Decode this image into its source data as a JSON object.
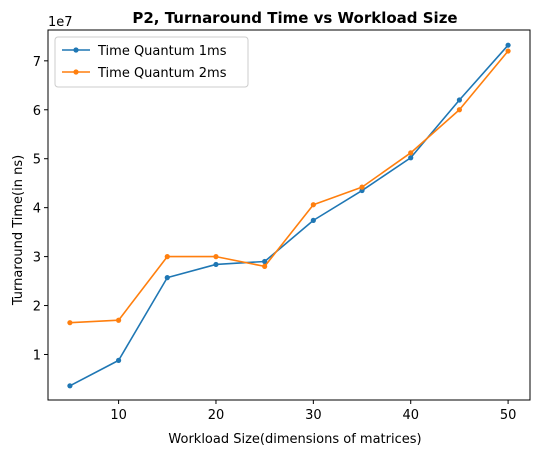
{
  "chart_data": {
    "type": "line",
    "title": "P2, Turnaround Time vs Workload Size",
    "xlabel": "Workload Size(dimensions of matrices)",
    "ylabel": "Turnaround Time(in ns)",
    "y_scale_label": "1e7",
    "x": [
      5,
      10,
      15,
      20,
      25,
      30,
      35,
      40,
      45,
      50
    ],
    "xlim": [
      2.75,
      52.25
    ],
    "ylim": [
      0.07,
      7.63
    ],
    "x_ticks": [
      10,
      20,
      30,
      40,
      50
    ],
    "y_ticks": [
      1,
      2,
      3,
      4,
      5,
      6,
      7
    ],
    "grid": false,
    "legend_position": "top-left",
    "series": [
      {
        "name": "Time Quantum 1ms",
        "color": "#1f77b4",
        "values": [
          0.36,
          0.88,
          2.57,
          2.84,
          2.9,
          3.74,
          4.35,
          5.02,
          6.2,
          7.32
        ]
      },
      {
        "name": "Time Quantum 2ms",
        "color": "#ff7f0e",
        "values": [
          1.65,
          1.7,
          3.0,
          3.0,
          2.8,
          4.06,
          4.42,
          5.12,
          6.0,
          7.2
        ]
      }
    ]
  }
}
